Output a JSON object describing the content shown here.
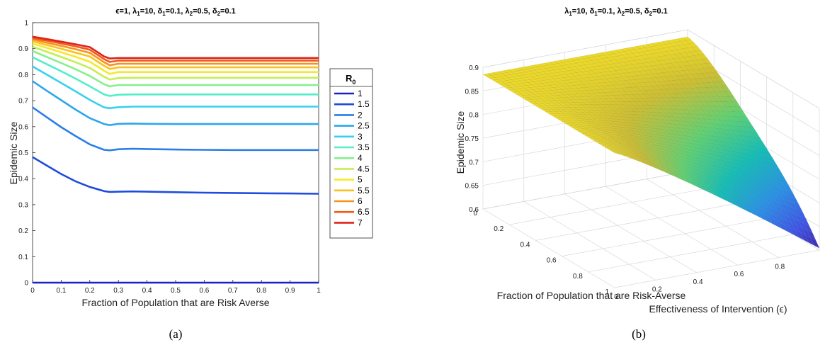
{
  "chart_data": [
    {
      "type": "line",
      "title": "ϵ=1, λ1=10, δ1=0.1, λ2=0.5, δ2=0.1",
      "xlabel": "Fraction of Population that are Risk Averse",
      "ylabel": "Epidemic Size",
      "xlim": [
        0,
        1
      ],
      "ylim": [
        0,
        1
      ],
      "xticks": [
        "0",
        "0.1",
        "0.2",
        "0.3",
        "0.4",
        "0.5",
        "0.6",
        "0.7",
        "0.8",
        "0.9",
        "1"
      ],
      "yticks": [
        "0",
        "0.1",
        "0.2",
        "0.3",
        "0.4",
        "0.5",
        "0.6",
        "0.7",
        "0.8",
        "0.9",
        "1"
      ],
      "legend_title": "R0",
      "legend_position": "right, outside",
      "x": [
        0,
        0.05,
        0.1,
        0.15,
        0.2,
        0.25,
        0.27,
        0.3,
        0.35,
        0.4,
        0.5,
        0.6,
        0.7,
        0.8,
        0.9,
        1.0
      ],
      "series": [
        {
          "name": "1",
          "color": "#1524c4",
          "values": [
            0.0,
            0.0,
            0.0,
            0.0,
            0.0,
            0.0,
            0.0,
            0.0,
            0.0,
            0.0,
            0.0,
            0.0,
            0.0,
            0.0,
            0.0,
            0.0
          ]
        },
        {
          "name": "1.5",
          "color": "#1f4bde",
          "values": [
            0.483,
            0.45,
            0.418,
            0.39,
            0.368,
            0.352,
            0.349,
            0.35,
            0.351,
            0.35,
            0.348,
            0.346,
            0.345,
            0.344,
            0.343,
            0.342
          ]
        },
        {
          "name": "2",
          "color": "#2a7ee8",
          "values": [
            0.674,
            0.636,
            0.598,
            0.564,
            0.532,
            0.511,
            0.509,
            0.513,
            0.515,
            0.514,
            0.512,
            0.511,
            0.51,
            0.51,
            0.51,
            0.51
          ]
        },
        {
          "name": "2.5",
          "color": "#2ea6ec",
          "values": [
            0.775,
            0.738,
            0.702,
            0.666,
            0.633,
            0.61,
            0.606,
            0.611,
            0.612,
            0.611,
            0.61,
            0.61,
            0.61,
            0.61,
            0.61,
            0.61
          ]
        },
        {
          "name": "3",
          "color": "#36d1ee",
          "values": [
            0.832,
            0.8,
            0.768,
            0.736,
            0.703,
            0.674,
            0.671,
            0.675,
            0.677,
            0.677,
            0.677,
            0.677,
            0.677,
            0.677,
            0.677,
            0.677
          ]
        },
        {
          "name": "3.5",
          "color": "#52eec8",
          "values": [
            0.867,
            0.84,
            0.813,
            0.785,
            0.755,
            0.724,
            0.718,
            0.723,
            0.724,
            0.724,
            0.724,
            0.724,
            0.724,
            0.724,
            0.724,
            0.724
          ]
        },
        {
          "name": "4",
          "color": "#86f08c",
          "values": [
            0.891,
            0.868,
            0.845,
            0.821,
            0.795,
            0.763,
            0.755,
            0.76,
            0.76,
            0.76,
            0.76,
            0.76,
            0.76,
            0.76,
            0.76,
            0.76
          ]
        },
        {
          "name": "4.5",
          "color": "#c5ee52",
          "values": [
            0.908,
            0.888,
            0.868,
            0.848,
            0.826,
            0.792,
            0.781,
            0.787,
            0.788,
            0.788,
            0.788,
            0.788,
            0.788,
            0.788,
            0.788,
            0.788
          ]
        },
        {
          "name": "5",
          "color": "#f4ea2a",
          "values": [
            0.92,
            0.903,
            0.886,
            0.869,
            0.85,
            0.815,
            0.803,
            0.81,
            0.81,
            0.81,
            0.81,
            0.81,
            0.81,
            0.81,
            0.81,
            0.81
          ]
        },
        {
          "name": "5.5",
          "color": "#f9c21e",
          "values": [
            0.929,
            0.914,
            0.9,
            0.885,
            0.87,
            0.834,
            0.822,
            0.828,
            0.828,
            0.828,
            0.828,
            0.828,
            0.828,
            0.828,
            0.828,
            0.828
          ]
        },
        {
          "name": "6",
          "color": "#f8921c",
          "values": [
            0.936,
            0.923,
            0.911,
            0.898,
            0.884,
            0.848,
            0.836,
            0.842,
            0.842,
            0.842,
            0.842,
            0.842,
            0.842,
            0.842,
            0.842,
            0.842
          ]
        },
        {
          "name": "6.5",
          "color": "#f05a18",
          "values": [
            0.941,
            0.931,
            0.92,
            0.909,
            0.896,
            0.86,
            0.849,
            0.854,
            0.854,
            0.854,
            0.854,
            0.854,
            0.854,
            0.854,
            0.854,
            0.854
          ]
        },
        {
          "name": "7",
          "color": "#e0201a",
          "values": [
            0.946,
            0.937,
            0.927,
            0.917,
            0.906,
            0.87,
            0.862,
            0.864,
            0.864,
            0.864,
            0.864,
            0.864,
            0.864,
            0.864,
            0.864,
            0.864
          ]
        }
      ]
    },
    {
      "type": "surface",
      "title": "λ1=10, δ1=0.1, λ2=0.5, δ2=0.1",
      "xlabel": "Fraction of Population that are Risk-Averse",
      "ylabel": "Effectiveness of Intervention (ϵ)",
      "zlabel": "Epidemic Size",
      "xlim": [
        0,
        1
      ],
      "ylim": [
        0,
        1
      ],
      "zlim": [
        0.6,
        0.9
      ],
      "xticks": [
        "0",
        "0.2",
        "0.4",
        "0.6",
        "0.8",
        "1"
      ],
      "yticks": [
        "0",
        "0.2",
        "0.4",
        "0.6",
        "0.8"
      ],
      "zticks": [
        "0.6",
        "0.65",
        "0.7",
        "0.75",
        "0.8",
        "0.85",
        "0.9"
      ],
      "colormap": "parula",
      "corner_values": {
        "risk_averse_0_effectiveness_0": 0.885,
        "risk_averse_1_effectiveness_0": 0.885,
        "risk_averse_0_effectiveness_1": 0.885,
        "risk_averse_1_effectiveness_1": 0.6
      },
      "grid": true
    }
  ],
  "captions": {
    "a": "(a)",
    "b": "(b)"
  },
  "subscripts": {
    "one": "1",
    "two": "2",
    "zero": "0"
  }
}
